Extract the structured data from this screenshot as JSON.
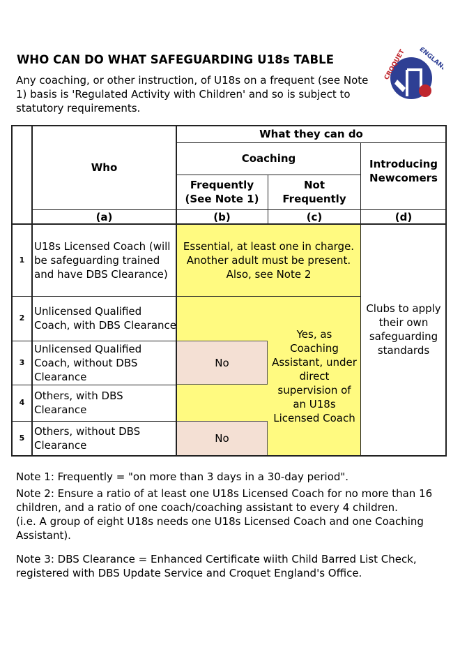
{
  "title": "WHO CAN DO WHAT SAFEGUARDING U18s TABLE",
  "intro": "Any coaching, or other instruction, of U18s on a frequent (see Note 1) basis is 'Regulated Activity with Children' and so is subject to statutory requirements.",
  "logo": {
    "text": "CROQUET ENGLAND",
    "colors": {
      "blue": "#2e3f94",
      "red": "#c0262d"
    }
  },
  "table": {
    "header": {
      "who": "Who",
      "what": "What they can do",
      "coaching": "Coaching",
      "frequently": "Frequently (See Note 1)",
      "not_frequently": "Not Frequently",
      "introducing": "Introducing Newcomers",
      "letters": [
        "(a)",
        "(b)",
        "(c)",
        "(d)"
      ]
    },
    "rows": [
      {
        "num": "1",
        "who": "U18s Licensed Coach (will be safeguarding trained and have DBS Clearance)"
      },
      {
        "num": "2",
        "who": "Unlicensed Qualified Coach, with DBS Clearance"
      },
      {
        "num": "3",
        "who": "Unlicensed Qualified Coach, without DBS Clearance"
      },
      {
        "num": "4",
        "who": "Others, with DBS Clearance"
      },
      {
        "num": "5",
        "who": "Others, without DBS Clearance"
      }
    ],
    "essential": "Essential, at least one in charge. Another adult must be present. Also, see Note 2",
    "yes": "Yes, as Coaching Assistant, under direct supervision of an U18s Licensed Coach",
    "no_3": "No",
    "no_5": "No",
    "clubs": "Clubs to apply their own safeguarding standards",
    "colors": {
      "yellow": "#fffa80",
      "pink": "#f4e0d4"
    }
  },
  "notes": [
    "Note 1: Frequently = \"on more than 3 days in a 30-day period\".",
    "Note 2: Ensure a ratio of at least one U18s Licensed Coach for no more than 16 children, and a ratio of one coach/coaching assistant to every 4 children.",
    "(i.e. A group of eight U18s needs one U18s Licensed Coach and one Coaching Assistant).",
    "Note 3: DBS Clearance = Enhanced Certificate wiith Child Barred List Check, registered with DBS Update Service and Croquet England's Office."
  ]
}
